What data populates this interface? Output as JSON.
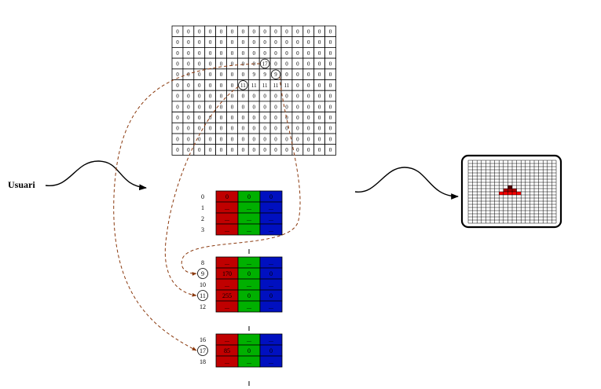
{
  "actor_label": "Usuari",
  "bitmap": {
    "rows": [
      [
        "0",
        "0",
        "0",
        "0",
        "0",
        "0",
        "0",
        "0",
        "0",
        "0",
        "0",
        "0",
        "0",
        "0",
        "0"
      ],
      [
        "0",
        "0",
        "0",
        "0",
        "0",
        "0",
        "0",
        "0",
        "0",
        "0",
        "0",
        "0",
        "0",
        "0",
        "0"
      ],
      [
        "0",
        "0",
        "0",
        "0",
        "0",
        "0",
        "0",
        "0",
        "0",
        "0",
        "0",
        "0",
        "0",
        "0",
        "0"
      ],
      [
        "0",
        "0",
        "0",
        "0",
        "0",
        "0",
        "0",
        "0",
        "17",
        "0",
        "0",
        "0",
        "0",
        "0",
        "0"
      ],
      [
        "0",
        "0",
        "0",
        "0",
        "0",
        "0",
        "0",
        "9",
        "9",
        "9",
        "0",
        "0",
        "0",
        "0",
        "0"
      ],
      [
        "0",
        "0",
        "0",
        "0",
        "0",
        "0",
        "11",
        "11",
        "11",
        "11",
        "11",
        "0",
        "0",
        "0",
        "0"
      ],
      [
        "0",
        "0",
        "0",
        "0",
        "0",
        "0",
        "0",
        "0",
        "0",
        "0",
        "0",
        "0",
        "0",
        "0",
        "0"
      ],
      [
        "0",
        "0",
        "0",
        "0",
        "0",
        "0",
        "0",
        "0",
        "0",
        "0",
        "0",
        "0",
        "0",
        "0",
        "0"
      ],
      [
        "0",
        "0",
        "0",
        "0",
        "0",
        "0",
        "0",
        "0",
        "0",
        "0",
        "0",
        "0",
        "0",
        "0",
        "0"
      ],
      [
        "0",
        "0",
        "0",
        "0",
        "0",
        "0",
        "0",
        "0",
        "0",
        "0",
        "0",
        "0",
        "0",
        "0",
        "0"
      ],
      [
        "0",
        "0",
        "0",
        "0",
        "0",
        "0",
        "0",
        "0",
        "0",
        "0",
        "0",
        "0",
        "0",
        "0",
        "0"
      ],
      [
        "0",
        "0",
        "0",
        "0",
        "0",
        "0",
        "0",
        "0",
        "0",
        "0",
        "0",
        "0",
        "0",
        "0",
        "0"
      ]
    ],
    "circled": [
      {
        "row": 3,
        "col": 8
      },
      {
        "row": 4,
        "col": 9
      },
      {
        "row": 5,
        "col": 6
      }
    ]
  },
  "palette_blocks": [
    {
      "rows": [
        {
          "index": "0",
          "r": "0",
          "g": "0",
          "b": "0",
          "circled": false
        },
        {
          "index": "1",
          "r": "...",
          "g": "...",
          "b": "...",
          "circled": false
        },
        {
          "index": "2",
          "r": "...",
          "g": "...",
          "b": "...",
          "circled": false
        },
        {
          "index": "3",
          "r": "...",
          "g": "...",
          "b": "...",
          "circled": false
        }
      ]
    },
    {
      "rows": [
        {
          "index": "8",
          "r": "...",
          "g": "...",
          "b": "...",
          "circled": false
        },
        {
          "index": "9",
          "r": "170",
          "g": "0",
          "b": "0",
          "circled": true
        },
        {
          "index": "10",
          "r": "...",
          "g": "...",
          "b": "...",
          "circled": false
        },
        {
          "index": "11",
          "r": "255",
          "g": "0",
          "b": "0",
          "circled": true
        },
        {
          "index": "12",
          "r": "...",
          "g": "...",
          "b": "...",
          "circled": false
        }
      ]
    },
    {
      "rows": [
        {
          "index": "16",
          "r": "...",
          "g": "...",
          "b": "...",
          "circled": false
        },
        {
          "index": "17",
          "r": "85",
          "g": "0",
          "b": "0",
          "circled": true
        },
        {
          "index": "18",
          "r": "...",
          "g": "...",
          "b": "...",
          "circled": false
        }
      ]
    }
  ],
  "colors": {
    "palette_red": "#c00000",
    "palette_green": "#00b000",
    "palette_blue": "#0010c0",
    "arrow_dashed": "#8b3a0f",
    "screen_dark_red": "#550000",
    "screen_mid_red": "#aa0000",
    "screen_bright_red": "#ff0000"
  },
  "screen": {
    "grid_size": 20,
    "lit_pixels": [
      {
        "row": 8,
        "col": 9,
        "color": "#550000"
      },
      {
        "row": 9,
        "col": 8,
        "color": "#aa0000"
      },
      {
        "row": 9,
        "col": 9,
        "color": "#aa0000"
      },
      {
        "row": 9,
        "col": 10,
        "color": "#aa0000"
      },
      {
        "row": 10,
        "col": 7,
        "color": "#ff0000"
      },
      {
        "row": 10,
        "col": 8,
        "color": "#ff0000"
      },
      {
        "row": 10,
        "col": 9,
        "color": "#ff0000"
      },
      {
        "row": 10,
        "col": 10,
        "color": "#ff0000"
      },
      {
        "row": 10,
        "col": 11,
        "color": "#ff0000"
      }
    ]
  }
}
